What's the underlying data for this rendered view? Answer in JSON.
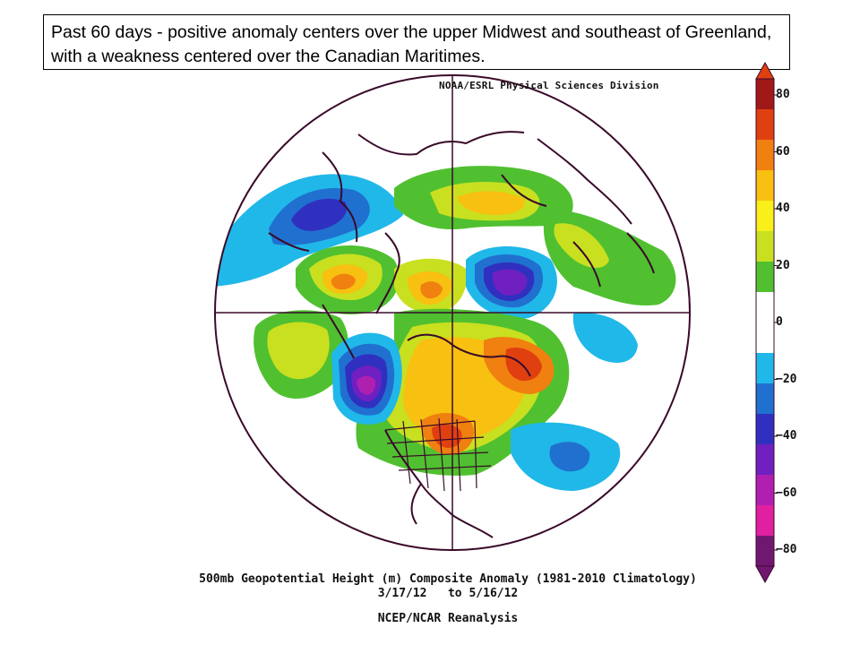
{
  "caption": "Past 60 days - positive anomaly centers over the upper Midwest and southeast of Greenland, with a weakness centered over the Canadian Maritimes.",
  "map": {
    "credit": "NOAA/ESRL Physical Sciences Division",
    "title_line1": "500mb Geopotential Height (m) Composite Anomaly (1981-2010 Climatology)",
    "title_line2": "3/17/12   to 5/16/12",
    "source": "NCEP/NCAR Reanalysis",
    "projection": "polar-stereographic-north"
  },
  "colorbar": {
    "ticks": [
      "80",
      "60",
      "40",
      "20",
      "0",
      "−20",
      "−40",
      "−60",
      "−80"
    ],
    "colors": [
      "#a01818",
      "#e04010",
      "#f08010",
      "#f8c010",
      "#f8f018",
      "#c8e020",
      "#50c030",
      "#ffffff",
      "#ffffff",
      "#20b8e8",
      "#2070d0",
      "#3030c0",
      "#7020c0",
      "#b020b0",
      "#e020a0",
      "#701870"
    ]
  }
}
